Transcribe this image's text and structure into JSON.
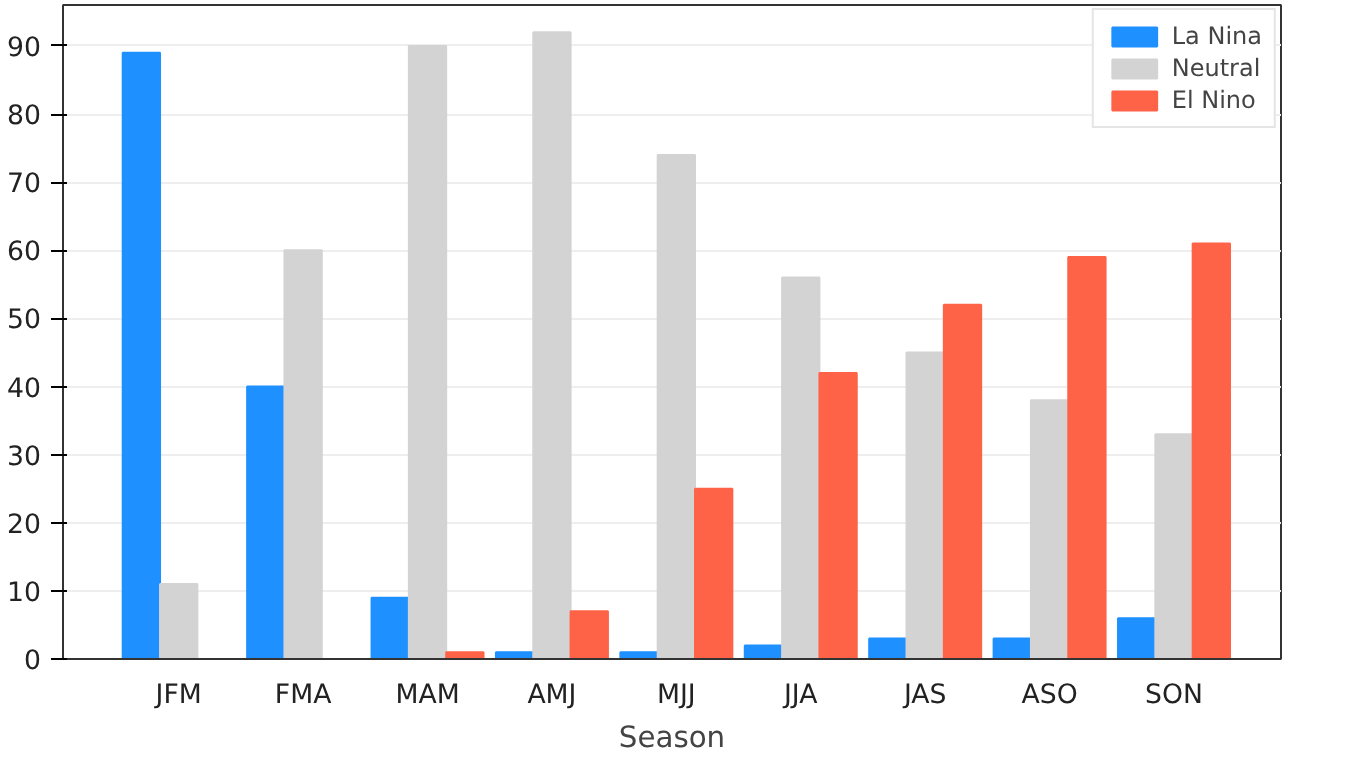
{
  "chart_data": {
    "type": "bar",
    "xlabel": "Season",
    "categories": [
      "JFM",
      "FMA",
      "MAM",
      "AMJ",
      "MJJ",
      "JJA",
      "JAS",
      "ASO",
      "SON"
    ],
    "series": [
      {
        "name": "La Nina",
        "color": "#1e90ff",
        "values": [
          89,
          40,
          9,
          1,
          1,
          2,
          3,
          3,
          6
        ]
      },
      {
        "name": "Neutral",
        "color": "#d3d3d3",
        "values": [
          11,
          60,
          90,
          92,
          74,
          56,
          45,
          38,
          33
        ]
      },
      {
        "name": "El Nino",
        "color": "#ff6347",
        "values": [
          0,
          0,
          1,
          7,
          25,
          42,
          52,
          59,
          61
        ]
      }
    ],
    "ylim": [
      0,
      96
    ],
    "yticks": [
      0,
      10,
      20,
      30,
      40,
      50,
      60,
      70,
      80,
      90
    ],
    "grid": "y",
    "legend": "top right"
  }
}
